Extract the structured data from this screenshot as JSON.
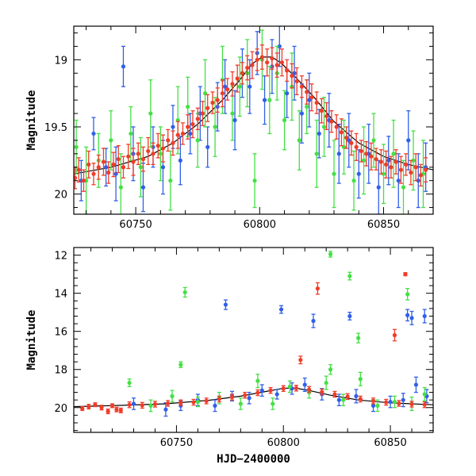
{
  "chart_data": [
    {
      "type": "scatter",
      "xlabel": "",
      "ylabel": "Magnitude",
      "xlim": [
        60725,
        60870
      ],
      "ylim": [
        20.15,
        18.75
      ],
      "y_inverted": true,
      "grid": false,
      "x_ticks": [
        60750,
        60800,
        60850
      ],
      "y_ticks": [
        19,
        19.5,
        20
      ],
      "x_tick_labels": [
        "60750",
        "60800",
        "60850"
      ],
      "y_tick_labels": [
        "19",
        "19.5",
        "20"
      ],
      "model_curve": {
        "color": "#000000",
        "x": [
          60725,
          60740,
          60755,
          60765,
          60775,
          60785,
          60792,
          60797,
          60801,
          60805,
          60809,
          60815,
          60822,
          60830,
          60840,
          60850,
          60860,
          60870
        ],
        "y": [
          19.85,
          19.8,
          19.72,
          19.62,
          19.48,
          19.3,
          19.15,
          19.03,
          18.98,
          18.98,
          19.03,
          19.14,
          19.28,
          19.46,
          19.62,
          19.72,
          19.78,
          19.82
        ]
      },
      "series": [
        {
          "color": "#3060e8",
          "x": [
            60728,
            60733,
            60738,
            60742,
            60745,
            60749,
            60753,
            60757,
            60761,
            60765,
            60768,
            60772,
            60776,
            60779,
            60783,
            60786,
            60790,
            60793,
            60796,
            60799,
            60802,
            60805,
            60808,
            60811,
            60814,
            60817,
            60820,
            60824,
            60828,
            60832,
            60836,
            60840,
            60844,
            60848,
            60852,
            60856,
            60860,
            60864,
            60867
          ],
          "y": [
            19.9,
            19.55,
            19.8,
            19.85,
            19.05,
            19.7,
            19.95,
            19.65,
            19.8,
            19.5,
            19.75,
            19.55,
            19.4,
            19.65,
            19.35,
            19.2,
            19.45,
            19.1,
            19.2,
            18.95,
            19.3,
            19.05,
            18.9,
            19.25,
            19.1,
            19.4,
            19.3,
            19.55,
            19.45,
            19.7,
            19.6,
            19.85,
            19.7,
            19.95,
            19.75,
            19.9,
            19.6,
            19.9,
            19.8
          ],
          "err": [
            0.15,
            0.12,
            0.14,
            0.2,
            0.15,
            0.2,
            0.18,
            0.15,
            0.2,
            0.16,
            0.18,
            0.15,
            0.2,
            0.15,
            0.18,
            0.2,
            0.22,
            0.18,
            0.2,
            0.16,
            0.18,
            0.2,
            0.15,
            0.18,
            0.2,
            0.22,
            0.2,
            0.18,
            0.2,
            0.22,
            0.2,
            0.18,
            0.22,
            0.2,
            0.18,
            0.2,
            0.22,
            0.2,
            0.18
          ]
        },
        {
          "color": "#44e044",
          "x": [
            60726,
            60730,
            60735,
            60740,
            60744,
            60748,
            60752,
            60756,
            60760,
            60764,
            60767,
            60771,
            60775,
            60778,
            60782,
            60785,
            60789,
            60792,
            60795,
            60798,
            60801,
            60804,
            60807,
            60810,
            60813,
            60816,
            60819,
            60823,
            60826,
            60830,
            60834,
            60838,
            60842,
            60846,
            60850,
            60854,
            60858,
            60862,
            60866
          ],
          "y": [
            19.65,
            19.9,
            19.75,
            19.6,
            19.95,
            19.55,
            19.8,
            19.4,
            19.7,
            19.9,
            19.45,
            19.35,
            19.6,
            19.25,
            19.5,
            19.15,
            19.4,
            19.2,
            19.1,
            19.9,
            19.0,
            19.3,
            19.1,
            19.45,
            19.2,
            19.6,
            19.35,
            19.7,
            19.5,
            19.85,
            19.65,
            19.9,
            19.75,
            19.6,
            19.85,
            19.7,
            19.95,
            19.75,
            19.85
          ],
          "err": [
            0.2,
            0.25,
            0.2,
            0.22,
            0.25,
            0.2,
            0.22,
            0.25,
            0.2,
            0.22,
            0.25,
            0.22,
            0.2,
            0.25,
            0.22,
            0.25,
            0.2,
            0.22,
            0.25,
            0.2,
            0.22,
            0.25,
            0.2,
            0.22,
            0.25,
            0.22,
            0.2,
            0.25,
            0.22,
            0.25,
            0.2,
            0.22,
            0.25,
            0.2,
            0.22,
            0.25,
            0.2,
            0.22,
            0.25
          ]
        },
        {
          "color": "#f03c28",
          "x": [
            60725.5,
            60727,
            60729,
            60731,
            60733,
            60735,
            60737,
            60739,
            60741,
            60743,
            60745,
            60747,
            60749,
            60751,
            60753,
            60755,
            60757,
            60759,
            60761,
            60763,
            60765,
            60767,
            60769,
            60771,
            60773,
            60775,
            60777,
            60779,
            60781,
            60783,
            60785,
            60787,
            60789,
            60791,
            60793,
            60795,
            60797,
            60799,
            60801,
            60803,
            60805,
            60807,
            60809,
            60811,
            60813,
            60815,
            60817,
            60819,
            60821,
            60823,
            60825,
            60827,
            60829,
            60831,
            60833,
            60835,
            60837,
            60839,
            60841,
            60843,
            60845,
            60847,
            60849,
            60851,
            60853,
            60855,
            60857,
            60859,
            60861,
            60863,
            60865,
            60867
          ],
          "y": [
            19.88,
            19.82,
            19.9,
            19.78,
            19.85,
            19.8,
            19.76,
            19.84,
            19.78,
            19.74,
            19.8,
            19.72,
            19.76,
            19.7,
            19.74,
            19.68,
            19.7,
            19.64,
            19.66,
            19.6,
            19.62,
            19.56,
            19.55,
            19.5,
            19.48,
            19.44,
            19.4,
            19.36,
            19.32,
            19.3,
            19.25,
            19.22,
            19.18,
            19.14,
            19.1,
            19.06,
            19.04,
            19.0,
            18.98,
            19.02,
            18.99,
            19.04,
            19.02,
            19.08,
            19.12,
            19.16,
            19.2,
            19.24,
            19.28,
            19.32,
            19.38,
            19.42,
            19.46,
            19.5,
            19.54,
            19.58,
            19.62,
            19.65,
            19.68,
            19.7,
            19.72,
            19.74,
            19.76,
            19.78,
            19.8,
            19.76,
            19.82,
            19.78,
            19.84,
            19.8,
            19.86,
            19.82
          ],
          "err": [
            0.08,
            0.09,
            0.08,
            0.1,
            0.08,
            0.09,
            0.1,
            0.08,
            0.09,
            0.1,
            0.08,
            0.09,
            0.1,
            0.08,
            0.09,
            0.1,
            0.08,
            0.09,
            0.1,
            0.08,
            0.09,
            0.1,
            0.08,
            0.09,
            0.1,
            0.08,
            0.09,
            0.1,
            0.08,
            0.09,
            0.1,
            0.08,
            0.09,
            0.1,
            0.08,
            0.09,
            0.1,
            0.08,
            0.09,
            0.1,
            0.08,
            0.09,
            0.1,
            0.08,
            0.09,
            0.1,
            0.08,
            0.09,
            0.1,
            0.08,
            0.09,
            0.1,
            0.08,
            0.09,
            0.1,
            0.08,
            0.09,
            0.1,
            0.08,
            0.09,
            0.1,
            0.08,
            0.09,
            0.1,
            0.08,
            0.09,
            0.1,
            0.08,
            0.09,
            0.1,
            0.08,
            0.09
          ]
        }
      ]
    },
    {
      "type": "scatter",
      "xlabel": "HJD−2400000",
      "ylabel": "Magnitude",
      "xlim": [
        60702,
        60870
      ],
      "ylim": [
        21.3,
        11.6
      ],
      "y_inverted": true,
      "grid": false,
      "x_ticks": [
        60750,
        60800,
        60850
      ],
      "y_ticks": [
        12,
        14,
        16,
        18,
        20
      ],
      "x_tick_labels": [
        "60750",
        "60800",
        "60850"
      ],
      "y_tick_labels": [
        "12",
        "14",
        "16",
        "18",
        "20"
      ],
      "model_curve": {
        "color": "#000000",
        "x": [
          60702,
          60725,
          60745,
          60765,
          60780,
          60792,
          60800,
          60806,
          60812,
          60822,
          60835,
          60850,
          60870
        ],
        "y": [
          19.95,
          19.88,
          19.8,
          19.62,
          19.4,
          19.15,
          18.98,
          18.98,
          19.1,
          19.35,
          19.6,
          19.75,
          19.85
        ]
      },
      "series": [
        {
          "color": "#3060e8",
          "x": [
            60773,
            60799,
            60814,
            60831,
            60858,
            60860,
            60866,
            60730,
            60745,
            60752,
            60760,
            60768,
            60776,
            60784,
            60790,
            60797,
            60804,
            60810,
            60818,
            60826,
            60834,
            60842,
            60850,
            60856,
            60862,
            60867
          ],
          "y": [
            14.6,
            14.85,
            15.45,
            15.2,
            15.15,
            15.3,
            15.2,
            19.8,
            20.1,
            19.9,
            19.6,
            19.9,
            19.4,
            19.5,
            19.1,
            19.3,
            19.0,
            18.8,
            19.3,
            19.6,
            19.4,
            19.9,
            19.7,
            19.6,
            18.8,
            19.4
          ],
          "err": [
            0.25,
            0.2,
            0.35,
            0.2,
            0.3,
            0.35,
            0.35,
            0.3,
            0.35,
            0.25,
            0.3,
            0.3,
            0.25,
            0.3,
            0.3,
            0.25,
            0.3,
            0.35,
            0.3,
            0.3,
            0.35,
            0.3,
            0.3,
            0.35,
            0.4,
            0.35
          ]
        },
        {
          "color": "#44e044",
          "x": [
            60822,
            60831,
            60754,
            60858,
            60835,
            60752,
            60822,
            60728,
            60738,
            60748,
            60760,
            60770,
            60780,
            60788,
            60795,
            60803,
            60812,
            60820,
            60828,
            60836,
            60844,
            60852,
            60860,
            60866
          ],
          "y": [
            11.95,
            13.1,
            13.95,
            14.05,
            16.35,
            17.75,
            18.0,
            18.7,
            19.9,
            19.4,
            19.7,
            19.5,
            19.8,
            18.6,
            19.8,
            18.9,
            19.2,
            18.7,
            19.6,
            18.5,
            19.9,
            19.7,
            19.8,
            19.3
          ],
          "err": [
            0.15,
            0.2,
            0.25,
            0.3,
            0.25,
            0.15,
            0.25,
            0.2,
            0.3,
            0.3,
            0.25,
            0.3,
            0.3,
            0.35,
            0.3,
            0.3,
            0.3,
            0.35,
            0.3,
            0.35,
            0.3,
            0.3,
            0.35,
            0.35
          ]
        },
        {
          "color": "#f03c28",
          "x": [
            60816,
            60857,
            60852,
            60808,
            60706,
            60709,
            60712,
            60715,
            60718,
            60720,
            60722,
            60724,
            60728,
            60734,
            60740,
            60746,
            60752,
            60758,
            60764,
            60770,
            60776,
            60782,
            60788,
            60794,
            60800,
            60806,
            60812,
            60818,
            60824,
            60830,
            60836,
            60842,
            60848,
            60854,
            60860,
            60866
          ],
          "y": [
            13.75,
            13.0,
            16.2,
            17.5,
            20.05,
            19.95,
            19.85,
            20.0,
            20.2,
            19.9,
            20.1,
            20.15,
            19.85,
            19.88,
            19.82,
            19.78,
            19.75,
            19.72,
            19.65,
            19.55,
            19.45,
            19.35,
            19.22,
            19.1,
            19.0,
            18.98,
            19.05,
            19.18,
            19.3,
            19.42,
            19.55,
            19.65,
            19.72,
            19.78,
            19.82,
            19.85
          ],
          "err": [
            0.3,
            0.08,
            0.3,
            0.2,
            0.1,
            0.12,
            0.1,
            0.12,
            0.12,
            0.1,
            0.12,
            0.12,
            0.15,
            0.15,
            0.15,
            0.15,
            0.15,
            0.15,
            0.15,
            0.15,
            0.15,
            0.15,
            0.15,
            0.15,
            0.15,
            0.15,
            0.15,
            0.15,
            0.15,
            0.15,
            0.15,
            0.15,
            0.15,
            0.15,
            0.15,
            0.15
          ]
        }
      ]
    }
  ]
}
